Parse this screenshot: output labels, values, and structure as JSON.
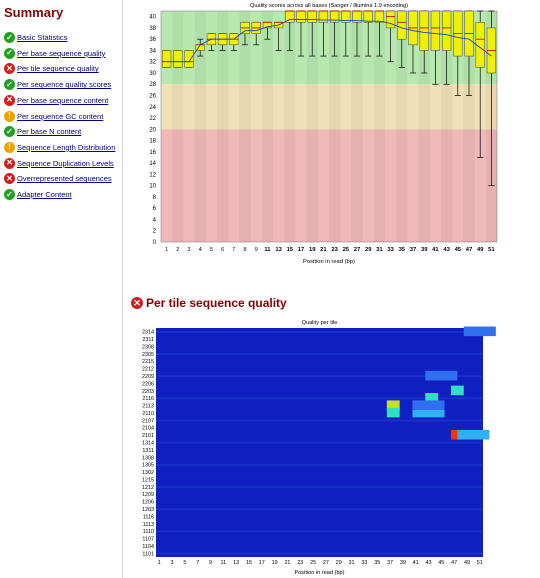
{
  "sidebar": {
    "title": "Summary",
    "modules": [
      {
        "label": "Basic Statistics",
        "status": "pass"
      },
      {
        "label": "Per base sequence quality",
        "status": "pass"
      },
      {
        "label": "Per tile sequence quality",
        "status": "fail"
      },
      {
        "label": "Per sequence quality scores",
        "status": "pass"
      },
      {
        "label": "Per base sequence content",
        "status": "fail"
      },
      {
        "label": "Per sequence GC content",
        "status": "warn"
      },
      {
        "label": "Per base N content",
        "status": "pass"
      },
      {
        "label": "Sequence Length Distribution",
        "status": "warn"
      },
      {
        "label": "Sequence Duplication Levels",
        "status": "fail"
      },
      {
        "label": "Overrepresented sequences",
        "status": "fail"
      },
      {
        "label": "Adapter Content",
        "status": "pass"
      }
    ]
  },
  "colors": {
    "pass": "#22a022",
    "warn": "#f0a000",
    "fail": "#d01f1f",
    "zone_good": "#b8e8b0",
    "zone_warn": "#f0e0b8",
    "zone_bad": "#f0b8b8",
    "box": "#f0f000",
    "heat_base": "#1020c0"
  },
  "sections": {
    "tile_title": "Per tile sequence quality"
  },
  "chart_data": [
    {
      "type": "box",
      "title": "Quality scores across all bases (Sanger / Illumina 1.9 encoding)",
      "xlabel": "Position in read (bp)",
      "ylabel": "",
      "ylim": [
        0,
        41
      ],
      "yticks": [
        0,
        2,
        4,
        6,
        8,
        10,
        12,
        14,
        16,
        18,
        20,
        22,
        24,
        26,
        28,
        30,
        32,
        34,
        36,
        38,
        40
      ],
      "x": [
        "1",
        "2",
        "3",
        "4",
        "5",
        "6",
        "7",
        "8",
        "9",
        "10-11",
        "12-13",
        "14-15",
        "16-17",
        "18-19",
        "20-21",
        "22-23",
        "24-25",
        "26-27",
        "28-29",
        "30-31",
        "32-33",
        "34-35",
        "36-37",
        "38-39",
        "40-41",
        "42-43",
        "44-45",
        "46-47",
        "48-49",
        "50-51"
      ],
      "xticklabels": [
        "1",
        "2",
        "3",
        "4",
        "5",
        "6",
        "7",
        "8",
        "9",
        "11",
        "13",
        "15",
        "17",
        "19",
        "21",
        "23",
        "25",
        "27",
        "29",
        "31",
        "33",
        "35",
        "37",
        "39",
        "41",
        "43",
        "45",
        "47",
        "49",
        "51"
      ],
      "zones": [
        {
          "from": 28,
          "to": 41,
          "color": "good"
        },
        {
          "from": 20,
          "to": 28,
          "color": "warn"
        },
        {
          "from": 0,
          "to": 20,
          "color": "bad"
        }
      ],
      "boxes": [
        {
          "q1": 31,
          "med": 32,
          "q3": 34,
          "low": 31,
          "high": 34
        },
        {
          "q1": 31,
          "med": 32,
          "q3": 34,
          "low": 31,
          "high": 34
        },
        {
          "q1": 31,
          "med": 32,
          "q3": 34,
          "low": 31,
          "high": 34
        },
        {
          "q1": 34,
          "med": 35,
          "q3": 35,
          "low": 33,
          "high": 36
        },
        {
          "q1": 35,
          "med": 36,
          "q3": 37,
          "low": 34,
          "high": 37
        },
        {
          "q1": 35,
          "med": 36,
          "q3": 37,
          "low": 34,
          "high": 37
        },
        {
          "q1": 35,
          "med": 36,
          "q3": 37,
          "low": 34,
          "high": 37
        },
        {
          "q1": 37,
          "med": 38,
          "q3": 39,
          "low": 35,
          "high": 39
        },
        {
          "q1": 37,
          "med": 38,
          "q3": 39,
          "low": 35,
          "high": 39
        },
        {
          "q1": 38,
          "med": 39,
          "q3": 39,
          "low": 36,
          "high": 39
        },
        {
          "q1": 38,
          "med": 39,
          "q3": 39,
          "low": 34,
          "high": 39
        },
        {
          "q1": 39,
          "med": 41,
          "q3": 41,
          "low": 34,
          "high": 41
        },
        {
          "q1": 39,
          "med": 41,
          "q3": 41,
          "low": 33,
          "high": 41
        },
        {
          "q1": 39,
          "med": 41,
          "q3": 41,
          "low": 33,
          "high": 41
        },
        {
          "q1": 39,
          "med": 41,
          "q3": 41,
          "low": 33,
          "high": 41
        },
        {
          "q1": 39,
          "med": 41,
          "q3": 41,
          "low": 33,
          "high": 41
        },
        {
          "q1": 39,
          "med": 41,
          "q3": 41,
          "low": 33,
          "high": 41
        },
        {
          "q1": 39,
          "med": 41,
          "q3": 41,
          "low": 33,
          "high": 41
        },
        {
          "q1": 39,
          "med": 41,
          "q3": 41,
          "low": 33,
          "high": 41
        },
        {
          "q1": 39,
          "med": 41,
          "q3": 41,
          "low": 33,
          "high": 41
        },
        {
          "q1": 38,
          "med": 40,
          "q3": 41,
          "low": 32,
          "high": 41
        },
        {
          "q1": 36,
          "med": 39,
          "q3": 41,
          "low": 31,
          "high": 41
        },
        {
          "q1": 35,
          "med": 38,
          "q3": 41,
          "low": 30,
          "high": 41
        },
        {
          "q1": 34,
          "med": 38,
          "q3": 41,
          "low": 30,
          "high": 41
        },
        {
          "q1": 34,
          "med": 38,
          "q3": 41,
          "low": 28,
          "high": 41
        },
        {
          "q1": 34,
          "med": 38,
          "q3": 41,
          "low": 28,
          "high": 41
        },
        {
          "q1": 33,
          "med": 37,
          "q3": 41,
          "low": 26,
          "high": 41
        },
        {
          "q1": 33,
          "med": 37,
          "q3": 41,
          "low": 26,
          "high": 41
        },
        {
          "q1": 31,
          "med": 36,
          "q3": 39,
          "low": 15,
          "high": 41
        },
        {
          "q1": 30,
          "med": 34,
          "q3": 38,
          "low": 10,
          "high": 41
        }
      ],
      "mean_line": [
        32,
        32,
        32,
        35,
        36,
        36,
        36,
        37.5,
        37.5,
        38.2,
        38.5,
        39.5,
        39.5,
        39.5,
        39.4,
        39.4,
        39.3,
        39.3,
        39.2,
        39.2,
        38.8,
        38,
        37.5,
        37.2,
        37,
        36.8,
        36.3,
        36,
        34.5,
        33
      ]
    },
    {
      "type": "heatmap",
      "title": "Quality per tile",
      "xlabel": "Position in read (bp)",
      "ylabel": "",
      "yticklabels": [
        "2314",
        "2311",
        "2308",
        "2305",
        "2215",
        "2212",
        "2209",
        "2206",
        "2203",
        "2116",
        "2113",
        "2110",
        "2107",
        "2104",
        "2101",
        "1314",
        "1311",
        "1308",
        "1305",
        "1302",
        "1215",
        "1212",
        "1209",
        "1206",
        "1203",
        "1116",
        "1113",
        "1110",
        "1107",
        "1104",
        "1101"
      ],
      "xticklabels": [
        "1",
        "3",
        "5",
        "7",
        "9",
        "11",
        "13",
        "15",
        "17",
        "19",
        "21",
        "23",
        "25",
        "27",
        "29",
        "31",
        "33",
        "35",
        "37",
        "39",
        "41",
        "43",
        "45",
        "47",
        "49",
        "51"
      ],
      "hotspots": [
        {
          "tile": "2113",
          "pos": 37,
          "level": 0.7
        },
        {
          "tile": "2110",
          "pos": 37,
          "level": 0.6
        },
        {
          "tile": "2110",
          "pos": 41,
          "level": 0.5
        },
        {
          "tile": "2116",
          "pos": 43,
          "level": 0.6
        },
        {
          "tile": "2203",
          "pos": 47,
          "level": 0.55
        },
        {
          "tile": "2101",
          "pos": 47,
          "level": 0.95
        },
        {
          "tile": "2101",
          "pos": 48,
          "level": 0.5
        },
        {
          "tile": "2209",
          "pos": 43,
          "level": 0.35
        },
        {
          "tile": "2113",
          "pos": 41,
          "level": 0.3
        },
        {
          "tile": "2314",
          "pos": 49,
          "level": 0.25
        }
      ]
    }
  ]
}
